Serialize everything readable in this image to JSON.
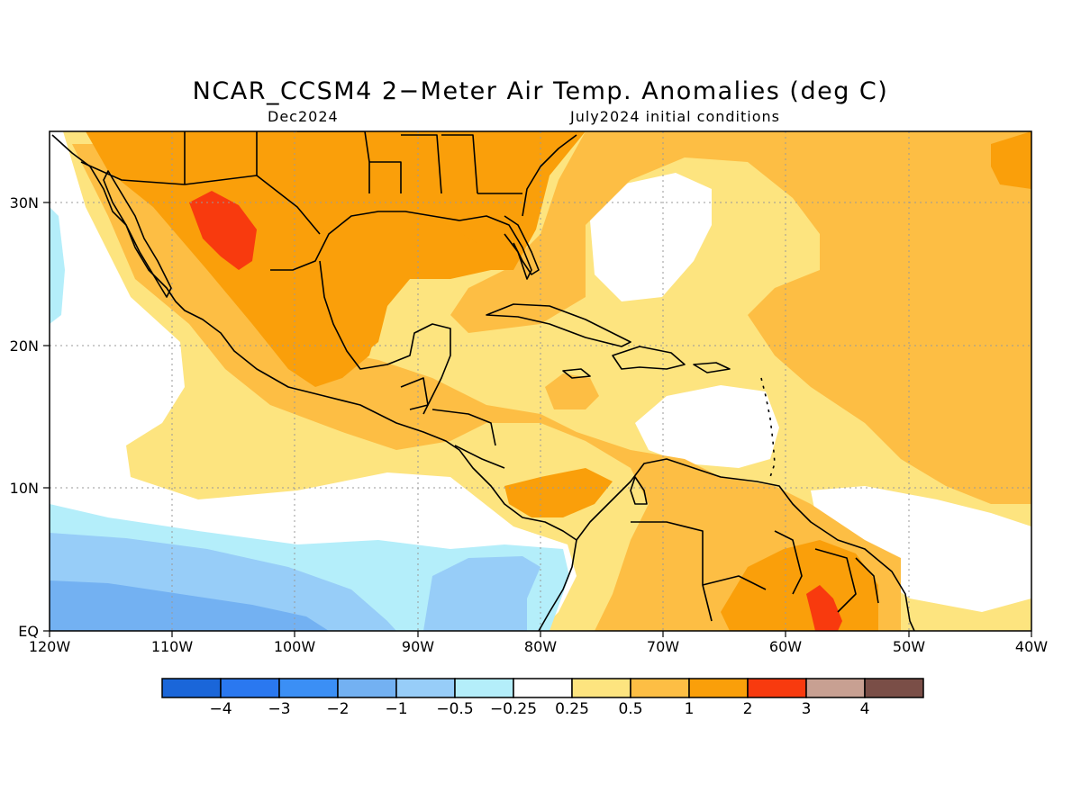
{
  "title": "NCAR_CCSM4 2−Meter Air Temp. Anomalies (deg C)",
  "subtitle_left": "Dec2024",
  "subtitle_right": "July2024 initial conditions",
  "axes": {
    "lon_labels": [
      "120W",
      "110W",
      "100W",
      "90W",
      "80W",
      "70W",
      "60W",
      "50W",
      "40W"
    ],
    "lat_labels": [
      "EQ",
      "10N",
      "20N",
      "30N"
    ]
  },
  "colorbar": {
    "colors": [
      "#1a66d9",
      "#2a78f0",
      "#3b8ff5",
      "#73b1f2",
      "#97cdf8",
      "#b4eefa",
      "#ffffff",
      "#fde47f",
      "#fdbe44",
      "#fa9f0a",
      "#f83a0e",
      "#c8a092",
      "#7a4e47"
    ],
    "labels": [
      "−4",
      "−3",
      "−2",
      "−1",
      "−0.5",
      "−0.25",
      "0.25",
      "0.5",
      "1",
      "2",
      "3",
      "4"
    ]
  },
  "palette": {
    "neg2": "#73b1f2",
    "neg1": "#97cdf8",
    "neg05": "#b4eefa",
    "zero": "#ffffff",
    "pos025": "#fde47f",
    "pos05": "#fdbe44",
    "pos1": "#fa9f0a",
    "pos2": "#f83a0e"
  }
}
